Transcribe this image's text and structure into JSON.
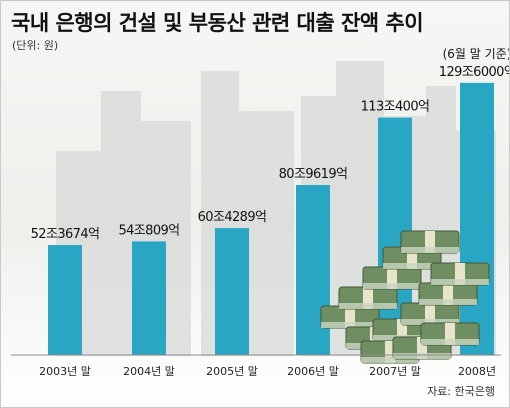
{
  "chart_data": {
    "type": "bar",
    "title": "국내 은행의 건설 및 부동산 관련 대출 잔액 추이",
    "unit_label": "(단위: 원)",
    "source_label": "자료: 한국은행",
    "categories": [
      "2003년 말",
      "2004년 말",
      "2005년 말",
      "2006년 말",
      "2007년 말",
      "2008년"
    ],
    "values": [
      52.3674,
      54.0809,
      60.4289,
      80.9619,
      113.04,
      129.6
    ],
    "value_unit": "조원",
    "data_labels": [
      "52조3674억",
      "54조809억",
      "60조4289억",
      "80조9619억",
      "113조400억",
      "129조6000억"
    ],
    "annotation": "(6월 말 기준)",
    "ylim": [
      0,
      140
    ],
    "xlabel": "",
    "ylabel": "",
    "bar_color": "#2aa6c5",
    "grid": false
  }
}
